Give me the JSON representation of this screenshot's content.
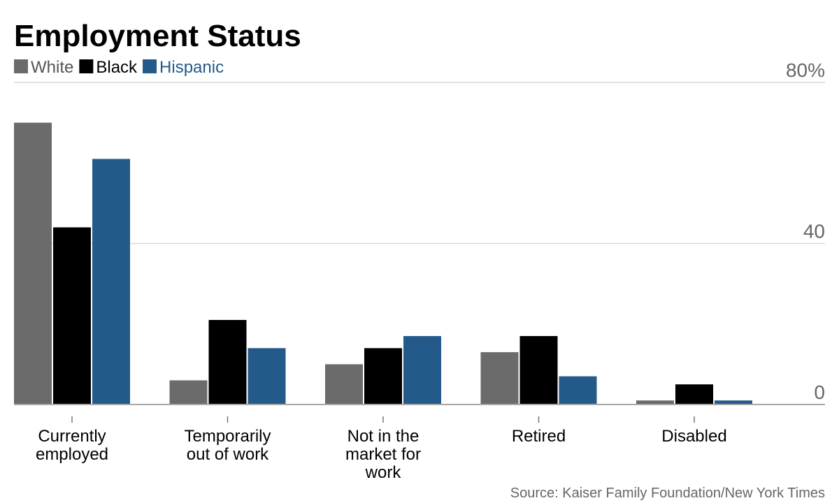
{
  "chart_data": {
    "type": "bar",
    "title": "Employment Status",
    "categories": [
      [
        "Currently",
        "employed"
      ],
      [
        "Temporarily",
        "out of work"
      ],
      [
        "Not in the",
        "market for",
        "work"
      ],
      [
        "Retired"
      ],
      [
        "Disabled"
      ]
    ],
    "series": [
      {
        "name": "White",
        "color": "#6b6b6b",
        "values": [
          70,
          6,
          10,
          13,
          1
        ]
      },
      {
        "name": "Black",
        "color": "#000000",
        "values": [
          44,
          21,
          14,
          17,
          5
        ]
      },
      {
        "name": "Hispanic",
        "color": "#245a89",
        "values": [
          61,
          14,
          17,
          7,
          1
        ]
      }
    ],
    "ylim": [
      0,
      80
    ],
    "yticks": [
      "0",
      "40",
      "80%"
    ],
    "ytick_values": [
      0,
      40,
      80
    ],
    "grid": true,
    "legend_position": "top-left",
    "source": "Source: Kaiser Family Foundation/New York Times"
  }
}
